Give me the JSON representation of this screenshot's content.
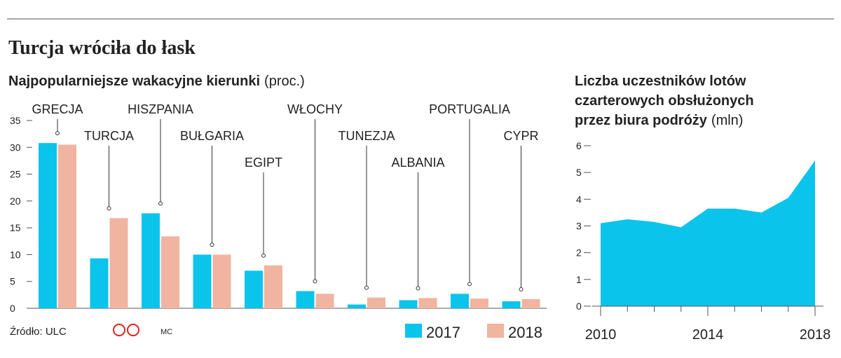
{
  "title": "Turcja wróciła do łask",
  "source": "Źródło:  ULC",
  "credit": "MC",
  "chart_data": [
    {
      "type": "bar",
      "title": "Najpopularniejsze wakacyjne kierunki",
      "unit": "(proc.)",
      "categories": [
        "GRECJA",
        "TURCJA",
        "HISZPANIA",
        "BUŁGARIA",
        "EGIPT",
        "WŁOCHY",
        "TUNEZJA",
        "ALBANIA",
        "PORTUGALIA",
        "CYPR"
      ],
      "series": [
        {
          "name": "2017",
          "color": "#0bc4ec",
          "values": [
            30.8,
            9.3,
            17.7,
            10.0,
            7.0,
            3.2,
            0.7,
            1.5,
            2.7,
            1.3
          ]
        },
        {
          "name": "2018",
          "color": "#f0b4a0",
          "values": [
            30.5,
            16.8,
            13.4,
            10.0,
            8.0,
            2.7,
            2.0,
            1.9,
            1.8,
            1.7
          ]
        }
      ],
      "ylim": [
        0,
        35
      ],
      "yticks": [
        0,
        5,
        10,
        15,
        20,
        25,
        30,
        35
      ]
    },
    {
      "type": "area",
      "title": "Liczba uczestników lotów czarterowych obsłużonych przez biura podróży",
      "unit": "(mln)",
      "x": [
        2010,
        2011,
        2012,
        2013,
        2014,
        2015,
        2016,
        2017,
        2018
      ],
      "values": [
        3.1,
        3.25,
        3.15,
        2.95,
        3.65,
        3.65,
        3.5,
        4.05,
        5.45
      ],
      "color": "#0bc4ec",
      "xlim": [
        2010,
        2018
      ],
      "xticks": [
        2010,
        2014,
        2018
      ],
      "ylim": [
        0,
        6
      ],
      "yticks": [
        0,
        1,
        2,
        3,
        4,
        5,
        6
      ]
    }
  ]
}
